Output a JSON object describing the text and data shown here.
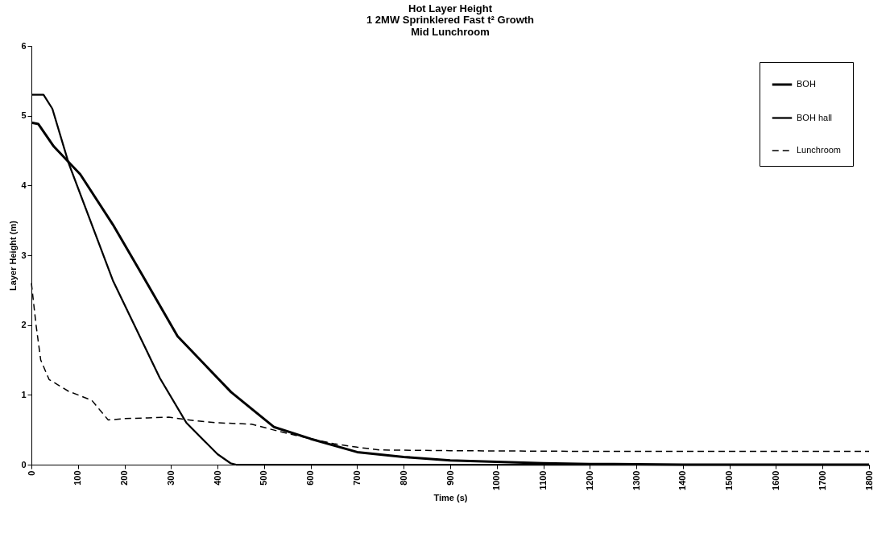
{
  "chart_data": {
    "type": "line",
    "title": "Hot Layer Height",
    "subtitle": "1 2MW Sprinklered Fast t² Growth\nMid Lunchroom",
    "xlabel": "Time (s)",
    "ylabel": "Layer Height (m)",
    "xlim": [
      0,
      1800
    ],
    "xticks": [
      0,
      100,
      200,
      300,
      400,
      500,
      600,
      700,
      800,
      900,
      1000,
      1100,
      1200,
      1300,
      1400,
      1500,
      1600,
      1700,
      1800
    ],
    "ylim": [
      0,
      6
    ],
    "yticks": [
      0,
      1,
      2,
      3,
      4,
      5,
      6
    ],
    "grid": false,
    "legend": "top right",
    "marker": "none",
    "series": [
      {
        "name": "BOH",
        "color": "#000000",
        "line_style": "solid",
        "x": [
          0,
          15,
          48,
          105,
          175,
          238,
          314,
          429,
          521,
          600,
          700,
          800,
          900,
          1000,
          1100,
          1200,
          1400,
          1800
        ],
        "values": [
          4.9,
          4.88,
          4.56,
          4.16,
          3.44,
          2.72,
          1.84,
          1.04,
          0.54,
          0.37,
          0.18,
          0.11,
          0.06,
          0.04,
          0.02,
          0.01,
          0,
          0
        ]
      },
      {
        "name": "BOH hall",
        "color": "#000000",
        "line_style": "solid",
        "x": [
          0,
          26,
          45,
          80,
          175,
          276,
          333,
          400,
          428,
          440,
          1800
        ],
        "values": [
          5.3,
          5.3,
          5.1,
          4.32,
          2.64,
          1.24,
          0.6,
          0.15,
          0.02,
          0,
          0
        ]
      },
      {
        "name": "Lunchroom",
        "color": "#000000",
        "line_style": "dashed",
        "x": [
          0,
          10,
          20,
          38,
          80,
          100,
          130,
          165,
          200,
          250,
          295,
          350,
          400,
          473,
          530,
          600,
          650,
          700,
          750,
          900,
          1200,
          1800
        ],
        "values": [
          2.6,
          2.0,
          1.5,
          1.22,
          1.05,
          1.0,
          0.92,
          0.64,
          0.66,
          0.67,
          0.68,
          0.63,
          0.6,
          0.58,
          0.48,
          0.37,
          0.3,
          0.25,
          0.21,
          0.2,
          0.19,
          0.19
        ]
      }
    ]
  }
}
